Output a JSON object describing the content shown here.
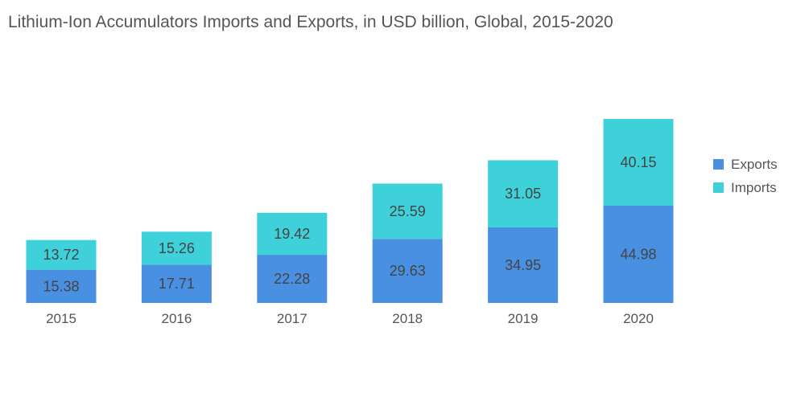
{
  "chart_data": {
    "type": "bar",
    "stacked": true,
    "title": "Lithium-Ion Accumulators Imports and Exports, in USD billion, Global, 2015-2020",
    "xlabel": "",
    "ylabel": "",
    "categories": [
      "2015",
      "2016",
      "2017",
      "2018",
      "2019",
      "2020"
    ],
    "series": [
      {
        "name": "Exports",
        "color": "#4a90e2",
        "values": [
          15.38,
          17.71,
          22.28,
          29.63,
          34.95,
          44.98
        ]
      },
      {
        "name": "Imports",
        "color": "#3fd1d9",
        "values": [
          13.72,
          15.26,
          19.42,
          25.59,
          31.05,
          40.15
        ]
      }
    ],
    "value_labels": [
      [
        "15.38",
        "17.71",
        "22.28",
        "29.63",
        "34.95",
        "44.98"
      ],
      [
        "13.72",
        "15.26",
        "19.42",
        "25.59",
        "31.05",
        "40.15"
      ]
    ],
    "ylim": [
      0,
      85.13
    ],
    "grid": false,
    "legend_position": "right"
  }
}
